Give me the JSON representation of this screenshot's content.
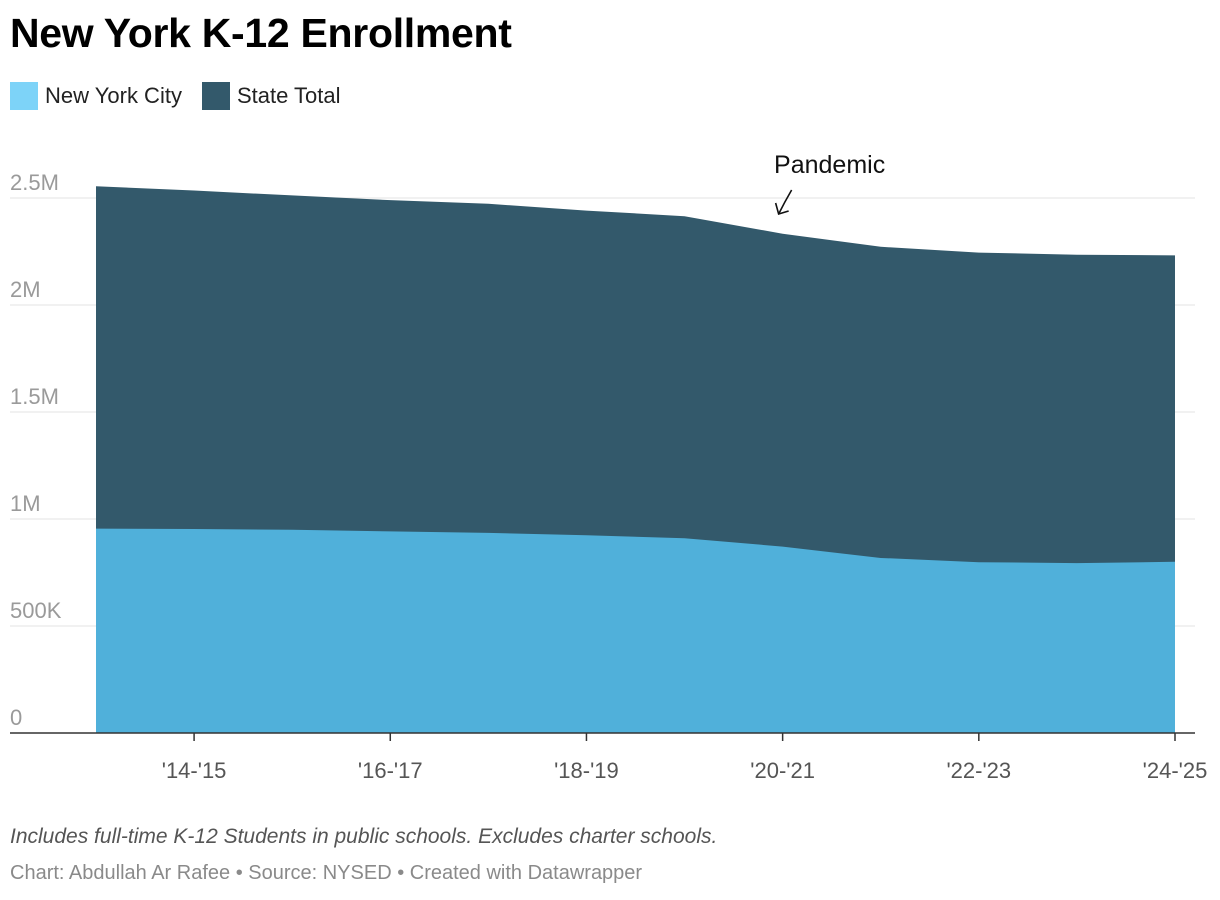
{
  "chart_data": {
    "type": "area",
    "title": "New York K-12 Enrollment",
    "x": [
      "'13-'14",
      "'14-'15",
      "'15-'16",
      "'16-'17",
      "'17-'18",
      "'18-'19",
      "'19-'20",
      "'20-'21",
      "'21-'22",
      "'22-'23",
      "'23-'24",
      "'24-'25"
    ],
    "tick_labels": [
      "'14-'15",
      "'16-'17",
      "'18-'19",
      "'20-'21",
      "'22-'23",
      "'24-'25"
    ],
    "series": [
      {
        "name": "New York City",
        "color": "#50b0da",
        "values": [
          955000,
          953000,
          950000,
          942000,
          935000,
          924000,
          910000,
          871000,
          818000,
          798000,
          794000,
          800000
        ]
      },
      {
        "name": "State Total",
        "color": "#33596b",
        "values": [
          2555000,
          2535000,
          2512000,
          2490000,
          2473000,
          2441000,
          2415000,
          2333000,
          2272000,
          2245000,
          2235000,
          2232000
        ]
      }
    ],
    "y_ticks": [
      {
        "value": 0,
        "label": "0"
      },
      {
        "value": 500000,
        "label": "500K"
      },
      {
        "value": 1000000,
        "label": "1M"
      },
      {
        "value": 1500000,
        "label": "1.5M"
      },
      {
        "value": 2000000,
        "label": "2M"
      },
      {
        "value": 2500000,
        "label": "2.5M"
      }
    ],
    "ylim": [
      0,
      2500000
    ],
    "grid": true,
    "legend_position": "top-left",
    "annotation": {
      "text": "Pandemic",
      "x": "'20-'21"
    }
  },
  "legend": [
    {
      "label": "New York City",
      "color": "#7dd3f8"
    },
    {
      "label": "State Total",
      "color": "#33596b"
    }
  ],
  "note": "Includes full-time K-12 Students in public schools. Excludes charter schools.",
  "footer": "Chart: Abdullah Ar Rafee • Source: NYSED • Created with Datawrapper"
}
